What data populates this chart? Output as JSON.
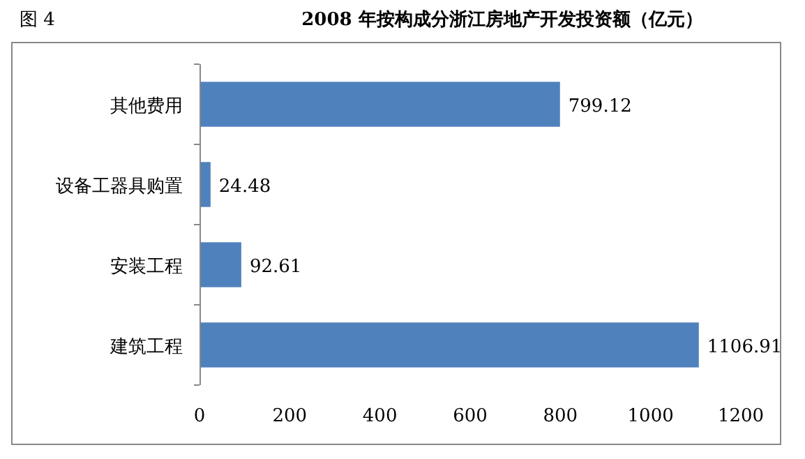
{
  "chart_data": {
    "type": "bar",
    "orientation": "horizontal",
    "title": "2008 年按构成分浙江房地产开发投资额（亿元）",
    "annotations": [
      "图 4"
    ],
    "categories": [
      "其他费用",
      "设备工器具购置",
      "安装工程",
      "建筑工程"
    ],
    "values": [
      799.12,
      24.48,
      92.61,
      1106.91
    ],
    "color": "#4f81bd",
    "xlim": [
      0,
      1200
    ],
    "xticks": [
      0,
      200,
      400,
      600,
      800,
      1000,
      1200
    ],
    "data_labels": true
  }
}
